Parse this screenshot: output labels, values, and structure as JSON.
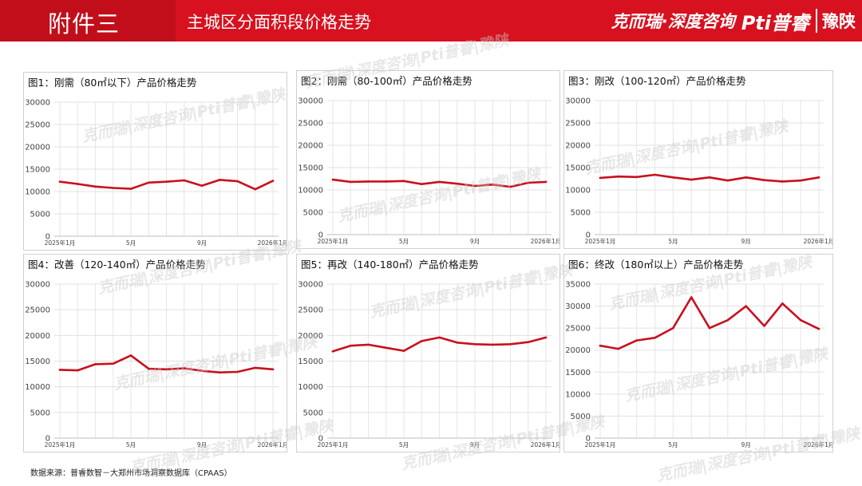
{
  "header": {
    "tag": "附件三",
    "title": "主城区分面积段价格走势",
    "logo_keruirui": "克而瑞·深度咨询",
    "logo_purui": "Pti普睿",
    "logo_yushan": "豫陕"
  },
  "footer": {
    "source": "数据来源：普睿数智－大郑州市场洞察数据库（CPAAS）"
  },
  "watermark": "克而瑞|深度咨询|Pti普睿|豫陕",
  "colors": {
    "line": "#c8101e",
    "header": "#d7111f"
  },
  "chart_data": [
    {
      "type": "line",
      "title": "图1：刚需（80㎡以下）产品价格走势",
      "x": [
        "2025年1月",
        "2月",
        "3月",
        "4月",
        "5月",
        "6月",
        "7月",
        "8月",
        "9月",
        "10月",
        "11月",
        "12月",
        "2026年1月"
      ],
      "xticks": [
        "2025年1月",
        "5月",
        "9月",
        "2026年1月"
      ],
      "xtick_index": [
        0,
        4,
        8,
        12
      ],
      "values": [
        12200,
        11700,
        11100,
        10800,
        10600,
        12000,
        12200,
        12500,
        11300,
        12600,
        12300,
        10500,
        12400
      ],
      "ylim": [
        0,
        30000
      ],
      "yticks": [
        0,
        5000,
        10000,
        15000,
        20000,
        25000,
        30000
      ],
      "grid": true
    },
    {
      "type": "line",
      "title": "图2：刚需（80-100㎡）产品价格走势",
      "x": [
        "2025年1月",
        "2月",
        "3月",
        "4月",
        "5月",
        "6月",
        "7月",
        "8月",
        "9月",
        "10月",
        "11月",
        "12月",
        "2026年1月"
      ],
      "xticks": [
        "2025年1月",
        "5月",
        "9月",
        "2026年1月"
      ],
      "xtick_index": [
        0,
        4,
        8,
        12
      ],
      "values": [
        12300,
        11800,
        11900,
        11900,
        12000,
        11300,
        11800,
        11400,
        10900,
        11200,
        10700,
        11600,
        11800
      ],
      "ylim": [
        0,
        30000
      ],
      "yticks": [
        0,
        5000,
        10000,
        15000,
        20000,
        25000,
        30000
      ],
      "grid": true
    },
    {
      "type": "line",
      "title": "图3：刚改（100-120㎡）产品价格走势",
      "x": [
        "2025年1月",
        "2月",
        "3月",
        "4月",
        "5月",
        "6月",
        "7月",
        "8月",
        "9月",
        "10月",
        "11月",
        "12月",
        "2026年1月"
      ],
      "xticks": [
        "2025年1月",
        "5月",
        "9月",
        "2026年1月"
      ],
      "xtick_index": [
        0,
        4,
        8,
        12
      ],
      "values": [
        12700,
        13000,
        12900,
        13400,
        12800,
        12300,
        12800,
        12100,
        12800,
        12200,
        11900,
        12100,
        12800
      ],
      "ylim": [
        0,
        30000
      ],
      "yticks": [
        0,
        5000,
        10000,
        15000,
        20000,
        25000,
        30000
      ],
      "grid": true
    },
    {
      "type": "line",
      "title": "图4：改善（120-140㎡）产品价格走势",
      "x": [
        "2025年1月",
        "2月",
        "3月",
        "4月",
        "5月",
        "6月",
        "7月",
        "8月",
        "9月",
        "10月",
        "11月",
        "12月",
        "2026年1月"
      ],
      "xticks": [
        "2025年1月",
        "5月",
        "9月",
        "2026年1月"
      ],
      "xtick_index": [
        0,
        4,
        8,
        12
      ],
      "values": [
        13300,
        13200,
        14400,
        14500,
        16100,
        13500,
        13400,
        13600,
        13100,
        12800,
        12900,
        13700,
        13400
      ],
      "ylim": [
        0,
        30000
      ],
      "yticks": [
        0,
        5000,
        10000,
        15000,
        20000,
        25000,
        30000
      ],
      "grid": true
    },
    {
      "type": "line",
      "title": "图5：再改（140-180㎡）产品价格走势",
      "x": [
        "2025年1月",
        "2月",
        "3月",
        "4月",
        "5月",
        "6月",
        "7月",
        "8月",
        "9月",
        "10月",
        "11月",
        "12月",
        "2026年1月"
      ],
      "xticks": [
        "2025年1月",
        "5月",
        "9月",
        "2026年1月"
      ],
      "xtick_index": [
        0,
        4,
        8,
        12
      ],
      "values": [
        16900,
        18000,
        18200,
        17600,
        17000,
        18900,
        19600,
        18600,
        18300,
        18200,
        18300,
        18700,
        19600
      ],
      "ylim": [
        0,
        30000
      ],
      "yticks": [
        0,
        5000,
        10000,
        15000,
        20000,
        25000,
        30000
      ],
      "grid": true
    },
    {
      "type": "line",
      "title": "图6：终改（180㎡以上）产品价格走势",
      "x": [
        "2025年1月",
        "2月",
        "3月",
        "4月",
        "5月",
        "6月",
        "7月",
        "8月",
        "9月",
        "10月",
        "11月",
        "12月",
        "2026年1月"
      ],
      "xticks": [
        "2025年1月",
        "5月",
        "9月",
        "2026年1月"
      ],
      "xtick_index": [
        0,
        4,
        8,
        12
      ],
      "values": [
        21000,
        20300,
        22200,
        22800,
        25000,
        32000,
        25000,
        26800,
        30000,
        25500,
        30600,
        26800,
        24800
      ],
      "ylim": [
        0,
        35000
      ],
      "yticks": [
        0,
        5000,
        10000,
        15000,
        20000,
        25000,
        30000,
        35000
      ],
      "grid": true
    }
  ]
}
